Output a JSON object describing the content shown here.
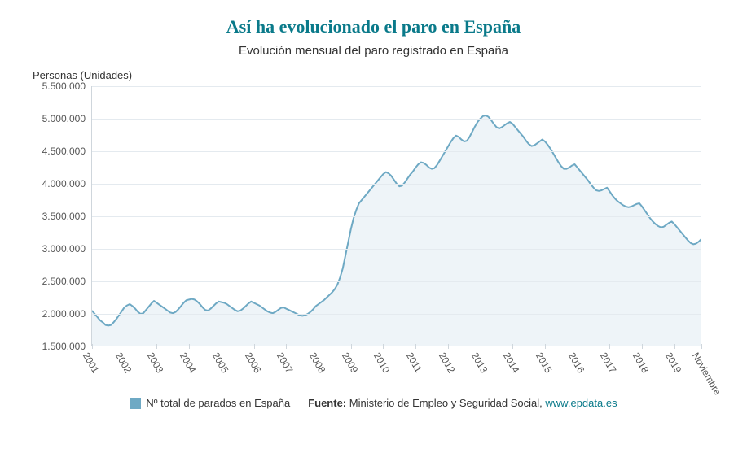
{
  "title": "Así ha evolucionado el paro en España",
  "title_color": "#0a7a8a",
  "title_fontsize": 22,
  "subtitle": "Evolución mensual del paro registrado en España",
  "subtitle_fontsize": 15,
  "yaxis_title": "Personas (Unidades)",
  "legend": {
    "swatch_color": "#6ea9c4",
    "series_label": "Nº total de parados en España",
    "source_label": "Fuente:",
    "source_text": "Ministerio de Empleo y Seguridad Social,",
    "source_link_text": "www.epdata.es",
    "source_link_color": "#0a7a8a"
  },
  "chart": {
    "type": "area",
    "line_color": "#6ea9c4",
    "fill_color": "#eef4f8",
    "line_width": 2,
    "background_color": "#ffffff",
    "grid_color": "#e4eaef",
    "axis_color": "#cfd6dc",
    "yaxis": {
      "min": 1500000,
      "max": 5500000,
      "step": 500000,
      "tick_labels": [
        "1.500.000",
        "2.000.000",
        "2.500.000",
        "3.000.000",
        "3.500.000",
        "4.000.000",
        "4.500.000",
        "5.000.000",
        "5.500.000"
      ]
    },
    "xaxis": {
      "tick_labels": [
        "2001",
        "2002",
        "2003",
        "2004",
        "2005",
        "2006",
        "2007",
        "2008",
        "2009",
        "2010",
        "2011",
        "2012",
        "2013",
        "2014",
        "2015",
        "2016",
        "2017",
        "2018",
        "2019",
        "Noviembre"
      ],
      "tick_positions_months": [
        0,
        12,
        24,
        36,
        48,
        60,
        72,
        84,
        96,
        108,
        120,
        132,
        144,
        156,
        168,
        180,
        192,
        204,
        216,
        226
      ],
      "total_months": 226
    },
    "series": [
      {
        "name": "Nº total de parados en España",
        "values": [
          2050000,
          2000000,
          1950000,
          1900000,
          1870000,
          1830000,
          1820000,
          1830000,
          1870000,
          1920000,
          1980000,
          2040000,
          2100000,
          2130000,
          2150000,
          2120000,
          2080000,
          2030000,
          2000000,
          2010000,
          2060000,
          2110000,
          2160000,
          2200000,
          2170000,
          2140000,
          2110000,
          2080000,
          2050000,
          2020000,
          2010000,
          2030000,
          2070000,
          2120000,
          2170000,
          2210000,
          2220000,
          2230000,
          2220000,
          2190000,
          2150000,
          2100000,
          2060000,
          2050000,
          2080000,
          2120000,
          2160000,
          2190000,
          2180000,
          2170000,
          2150000,
          2120000,
          2090000,
          2060000,
          2040000,
          2050000,
          2080000,
          2120000,
          2160000,
          2190000,
          2170000,
          2150000,
          2130000,
          2100000,
          2070000,
          2040000,
          2020000,
          2010000,
          2030000,
          2060000,
          2090000,
          2100000,
          2080000,
          2060000,
          2040000,
          2020000,
          2000000,
          1980000,
          1970000,
          1980000,
          2000000,
          2030000,
          2070000,
          2120000,
          2150000,
          2180000,
          2210000,
          2250000,
          2290000,
          2330000,
          2380000,
          2450000,
          2560000,
          2700000,
          2900000,
          3100000,
          3300000,
          3470000,
          3600000,
          3700000,
          3750000,
          3800000,
          3850000,
          3900000,
          3950000,
          4000000,
          4050000,
          4100000,
          4150000,
          4180000,
          4160000,
          4120000,
          4060000,
          4000000,
          3960000,
          3970000,
          4020000,
          4080000,
          4140000,
          4190000,
          4250000,
          4300000,
          4330000,
          4320000,
          4290000,
          4250000,
          4230000,
          4240000,
          4290000,
          4360000,
          4430000,
          4500000,
          4570000,
          4640000,
          4700000,
          4740000,
          4720000,
          4680000,
          4650000,
          4660000,
          4720000,
          4800000,
          4880000,
          4950000,
          5000000,
          5040000,
          5050000,
          5030000,
          4980000,
          4920000,
          4870000,
          4850000,
          4870000,
          4900000,
          4930000,
          4950000,
          4920000,
          4870000,
          4820000,
          4770000,
          4720000,
          4660000,
          4610000,
          4580000,
          4590000,
          4620000,
          4650000,
          4680000,
          4650000,
          4600000,
          4540000,
          4470000,
          4400000,
          4330000,
          4270000,
          4230000,
          4230000,
          4250000,
          4280000,
          4300000,
          4250000,
          4200000,
          4150000,
          4100000,
          4050000,
          3990000,
          3940000,
          3900000,
          3890000,
          3900000,
          3920000,
          3940000,
          3880000,
          3820000,
          3770000,
          3730000,
          3700000,
          3670000,
          3650000,
          3640000,
          3650000,
          3670000,
          3690000,
          3700000,
          3650000,
          3590000,
          3530000,
          3470000,
          3420000,
          3380000,
          3350000,
          3330000,
          3340000,
          3370000,
          3400000,
          3420000,
          3380000,
          3330000,
          3280000,
          3230000,
          3180000,
          3130000,
          3090000,
          3070000,
          3080000,
          3110000,
          3150000,
          3200000
        ]
      }
    ]
  }
}
